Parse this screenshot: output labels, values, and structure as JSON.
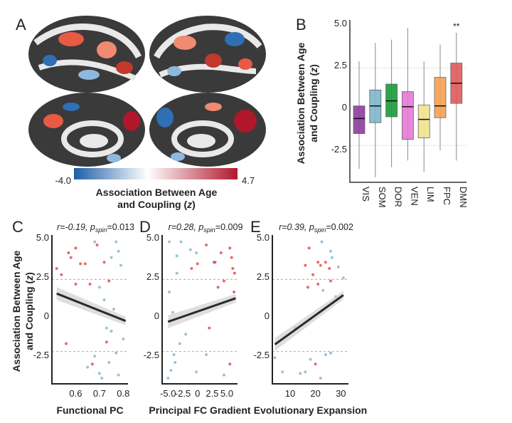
{
  "panels": {
    "A": "A",
    "B": "B",
    "C": "C",
    "D": "D",
    "E": "E"
  },
  "colorbar": {
    "min_label": "-4.0",
    "max_label": "4.7",
    "label_line1": "Association Between Age",
    "label_line2_pre": "and Coupling (",
    "label_line2_var": "z",
    "label_line2_post": ")",
    "colors": [
      "#1c5ea8",
      "#ffffff",
      "#b0172b"
    ]
  },
  "ylabel": {
    "line1": "Association Between Age",
    "line2_pre": "and Coupling (",
    "line2_var": "z",
    "line2_post": ")"
  },
  "colors": {
    "significant_positive": "#e0464a",
    "other": "#7fb6cc",
    "fit_line": "#2b2b2b",
    "ci_band": "#c8c8c8"
  },
  "chart_data": [
    {
      "panel": "B",
      "type": "box",
      "categories": [
        "VIS",
        "SOM",
        "DOR",
        "VEN",
        "LIM",
        "FPC",
        "DMN"
      ],
      "colors": [
        "#8e3b9e",
        "#7fb6cc",
        "#1a9b3a",
        "#e57ad6",
        "#f2e48e",
        "#f8a050",
        "#e05a5a"
      ],
      "boxes": [
        {
          "min": -3.7,
          "q1": -1.6,
          "median": -0.7,
          "q3": 0.05,
          "max": 2.7
        },
        {
          "min": -4.2,
          "q1": -0.95,
          "median": 0.05,
          "q3": 1.0,
          "max": 3.8
        },
        {
          "min": -3.6,
          "q1": -0.6,
          "median": 0.35,
          "q3": 1.35,
          "max": 4.0
        },
        {
          "min": -3.2,
          "q1": -1.95,
          "median": 0.0,
          "q3": 0.9,
          "max": 4.7
        },
        {
          "min": -3.9,
          "q1": -1.85,
          "median": -0.75,
          "q3": 0.1,
          "max": 2.7
        },
        {
          "min": -2.6,
          "q1": -0.65,
          "median": 0.05,
          "q3": 1.75,
          "max": 3.7
        },
        {
          "min": -3.2,
          "q1": 0.2,
          "median": 1.4,
          "q3": 2.6,
          "max": 4.4
        }
      ],
      "annotations": [
        {
          "category": "DMN",
          "text": "**"
        }
      ],
      "yticks": [
        "5.0",
        "2.5",
        "0",
        "-2.5"
      ],
      "ytick_values": [
        5.0,
        2.5,
        0,
        -2.5
      ],
      "ylim": [
        -4.5,
        5.0
      ],
      "reference_lines": [
        2.3,
        -2.3
      ]
    },
    {
      "panel": "C",
      "type": "scatter",
      "stat": {
        "r": "r=-0.19, ",
        "p": "p",
        "p_sub": "spin",
        "p_val": "=0.013"
      },
      "xlabel": "Functional  PC",
      "xticks": [
        "0.6",
        "0.7",
        "0.8"
      ],
      "xtick_values": [
        0.6,
        0.7,
        0.8
      ],
      "xlim": [
        0.5,
        0.82
      ],
      "yticks": [
        "5.0",
        "2.5",
        "0",
        "-2.5"
      ],
      "ytick_values": [
        5.0,
        2.5,
        0,
        -2.5
      ],
      "ylim": [
        -4.5,
        5.0
      ],
      "reference_lines": [
        2.3,
        -2.3
      ],
      "fit": [
        [
          0.52,
          1.4
        ],
        [
          0.81,
          -0.35
        ]
      ],
      "points": [
        [
          0.52,
          3.0,
          1
        ],
        [
          0.54,
          2.6,
          1
        ],
        [
          0.57,
          4.0,
          1
        ],
        [
          0.58,
          3.7,
          1
        ],
        [
          0.6,
          4.3,
          1
        ],
        [
          0.6,
          2.0,
          1
        ],
        [
          0.62,
          3.3,
          1
        ],
        [
          0.64,
          3.3,
          1
        ],
        [
          0.66,
          2.0,
          1
        ],
        [
          0.69,
          4.5,
          1
        ],
        [
          0.72,
          3.4,
          1
        ],
        [
          0.74,
          2.2,
          1
        ],
        [
          0.56,
          -1.8,
          1
        ],
        [
          0.67,
          -3.1,
          1
        ],
        [
          0.73,
          -1.7,
          1
        ],
        [
          0.68,
          4.7,
          0
        ],
        [
          0.77,
          4.7,
          0
        ],
        [
          0.78,
          4.1,
          0
        ],
        [
          0.75,
          3.7,
          0
        ],
        [
          0.79,
          3.2,
          0
        ],
        [
          0.7,
          1.8,
          0
        ],
        [
          0.72,
          1.0,
          0
        ],
        [
          0.76,
          0.4,
          0
        ],
        [
          0.68,
          -2.6,
          0
        ],
        [
          0.7,
          -3.7,
          0
        ],
        [
          0.71,
          -4.0,
          0
        ],
        [
          0.74,
          -3.0,
          0
        ],
        [
          0.78,
          -3.8,
          0
        ],
        [
          0.8,
          -1.5,
          0
        ],
        [
          0.73,
          -0.8,
          0
        ],
        [
          0.65,
          -3.3,
          0
        ],
        [
          0.77,
          -2.4,
          0
        ],
        [
          0.75,
          -1.0,
          0
        ]
      ]
    },
    {
      "panel": "D",
      "type": "scatter",
      "stat": {
        "r": "r=0.28, ",
        "p": "p",
        "p_sub": "spin",
        "p_val": "=0.009"
      },
      "xlabel": "Principal FC Gradient",
      "xticks": [
        "-5.0",
        "-2.5",
        "0",
        "2.5",
        "5.0"
      ],
      "xtick_values": [
        -5,
        -2.5,
        0,
        2.5,
        5
      ],
      "xlim": [
        -6,
        6.8
      ],
      "yticks": [
        "5.0",
        "2.5",
        "0",
        "-2.5"
      ],
      "ytick_values": [
        5.0,
        2.5,
        0,
        -2.5
      ],
      "ylim": [
        -4.5,
        5.0
      ],
      "reference_lines": [
        2.3,
        -2.3
      ],
      "fit": [
        [
          -5.0,
          -0.4
        ],
        [
          6.5,
          1.1
        ]
      ],
      "points": [
        [
          1.5,
          4.5,
          1
        ],
        [
          4,
          4.0,
          1
        ],
        [
          5.5,
          4.3,
          1
        ],
        [
          5.8,
          3.7,
          1
        ],
        [
          6,
          3.0,
          1
        ],
        [
          6.3,
          2.7,
          1
        ],
        [
          3,
          3.4,
          1
        ],
        [
          2.8,
          3.4,
          1
        ],
        [
          -1,
          3.0,
          1
        ],
        [
          0,
          3.3,
          1
        ],
        [
          5.5,
          -3.1,
          1
        ],
        [
          6.2,
          1.5,
          1
        ],
        [
          4.5,
          2.2,
          1
        ],
        [
          3.5,
          1.8,
          1
        ],
        [
          2,
          -0.8,
          1
        ],
        [
          -4.8,
          4.7,
          0
        ],
        [
          -2.8,
          4.7,
          0
        ],
        [
          -3.5,
          3.8,
          0
        ],
        [
          -1.2,
          4.2,
          0
        ],
        [
          -0.2,
          4.0,
          0
        ],
        [
          -4.8,
          1.5,
          0
        ],
        [
          -3.5,
          2.7,
          0
        ],
        [
          -5,
          -4.0,
          0
        ],
        [
          -4.5,
          -3.5,
          0
        ],
        [
          -3.8,
          -3.0,
          0
        ],
        [
          -4.0,
          -2.5,
          0
        ],
        [
          -0.2,
          -3.6,
          0
        ],
        [
          4.5,
          -3.8,
          0
        ],
        [
          1.5,
          -2.5,
          0
        ],
        [
          -2,
          -1.2,
          0
        ],
        [
          -4.2,
          0.2,
          0
        ],
        [
          -3,
          -1.8,
          0
        ]
      ]
    },
    {
      "panel": "E",
      "type": "scatter",
      "stat": {
        "r": "r=0.39, ",
        "p": "p",
        "p_sub": "spin",
        "p_val": "=0.002"
      },
      "xlabel": "Evolutionary Expansion",
      "xticks": [
        "10",
        "20",
        "30"
      ],
      "xtick_values": [
        10,
        20,
        30
      ],
      "xlim": [
        3,
        33
      ],
      "yticks": [
        "5.0",
        "2.5",
        "0",
        "-2.5"
      ],
      "ytick_values": [
        5.0,
        2.5,
        0,
        -2.5
      ],
      "ylim": [
        -4.5,
        5.0
      ],
      "reference_lines": [
        2.3,
        -2.3
      ],
      "fit": [
        [
          4,
          -1.85
        ],
        [
          31,
          1.3
        ]
      ],
      "points": [
        [
          17.5,
          4.3,
          1
        ],
        [
          16,
          3.2,
          1
        ],
        [
          21,
          3.4,
          1
        ],
        [
          22,
          3.2,
          1
        ],
        [
          24,
          3.4,
          1
        ],
        [
          25.5,
          3.0,
          1
        ],
        [
          19,
          2.6,
          1
        ],
        [
          21,
          2.0,
          1
        ],
        [
          26,
          2.2,
          1
        ],
        [
          20,
          -3.1,
          1
        ],
        [
          17,
          1.8,
          1
        ],
        [
          22.5,
          4.7,
          0
        ],
        [
          26,
          4.1,
          0
        ],
        [
          26.5,
          3.7,
          0
        ],
        [
          29,
          3.1,
          0
        ],
        [
          31,
          2.4,
          0
        ],
        [
          23,
          1.6,
          0
        ],
        [
          28,
          1.2,
          0
        ],
        [
          14,
          -3.7,
          0
        ],
        [
          16,
          -3.6,
          0
        ],
        [
          22,
          -4.0,
          0
        ],
        [
          24,
          -2.5,
          0
        ],
        [
          7,
          -3.6,
          0
        ],
        [
          4,
          -2.7,
          0
        ],
        [
          26,
          -2.4,
          0
        ],
        [
          18,
          -2.8,
          0
        ],
        [
          12,
          -0.8,
          0
        ]
      ]
    }
  ]
}
